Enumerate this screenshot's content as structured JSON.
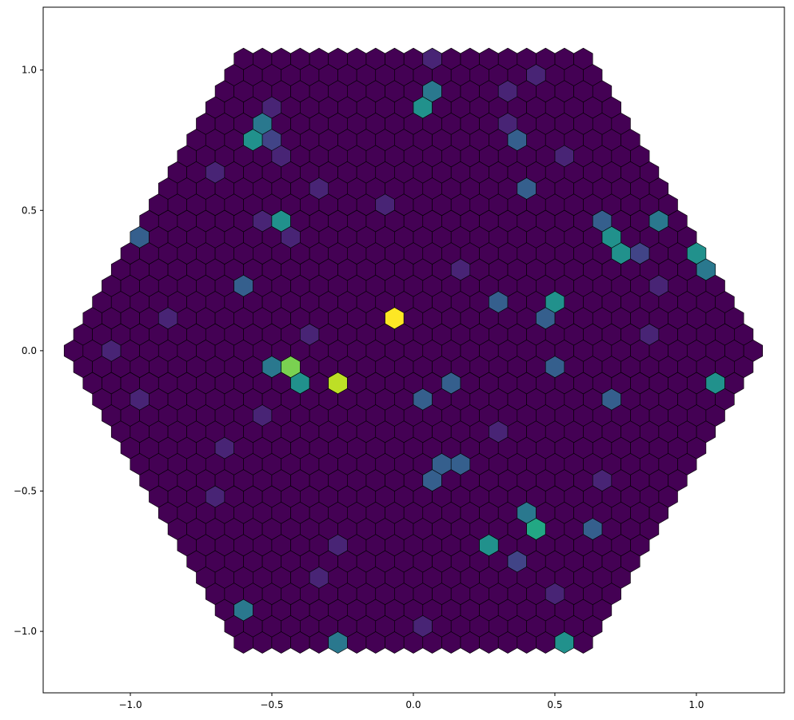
{
  "chart_data": {
    "type": "camera",
    "colormap": "viridis",
    "xlim": [
      -1.308,
      1.311
    ],
    "ylim": [
      -1.219,
      1.224
    ],
    "xticks": [
      {
        "value": -1.0,
        "label": "−1.0"
      },
      {
        "value": -0.5,
        "label": "−0.5"
      },
      {
        "value": 0.0,
        "label": "0.0"
      },
      {
        "value": 0.5,
        "label": "0.5"
      },
      {
        "value": 1.0,
        "label": "1.0"
      }
    ],
    "yticks": [
      {
        "value": -1.0,
        "label": "−1.0"
      },
      {
        "value": -0.5,
        "label": "−0.5"
      },
      {
        "value": 0.0,
        "label": "0.0"
      },
      {
        "value": 0.5,
        "label": "0.5"
      },
      {
        "value": 1.0,
        "label": "1.0"
      }
    ],
    "values": [
      [
        0,
        0,
        0,
        0,
        0,
        0,
        0,
        0,
        0,
        0,
        1,
        0,
        0,
        0,
        0,
        0,
        0,
        0,
        0
      ],
      [
        0,
        0,
        0,
        0,
        0,
        0,
        0,
        0,
        0,
        0,
        0,
        0,
        0,
        0,
        0,
        0,
        1,
        0,
        0,
        0
      ],
      [
        0,
        0,
        0,
        0,
        0,
        0,
        0,
        0,
        0,
        0,
        0,
        4,
        0,
        0,
        0,
        1,
        0,
        0,
        0,
        0,
        0
      ],
      [
        0,
        0,
        0,
        1,
        0,
        0,
        0,
        0,
        0,
        0,
        0,
        5,
        0,
        0,
        0,
        0,
        0,
        0,
        0,
        0,
        0,
        0
      ],
      [
        0,
        0,
        0,
        4,
        0,
        0,
        0,
        0,
        0,
        0,
        0,
        0,
        0,
        0,
        0,
        0,
        1,
        0,
        0,
        0,
        0,
        0,
        0
      ],
      [
        0,
        0,
        0,
        5,
        2,
        0,
        0,
        0,
        0,
        0,
        0,
        0,
        0,
        0,
        0,
        0,
        0,
        3,
        0,
        0,
        0,
        0,
        0,
        0
      ],
      [
        0,
        0,
        0,
        0,
        0,
        1,
        0,
        0,
        0,
        0,
        0,
        0,
        0,
        0,
        0,
        0,
        0,
        0,
        0,
        0,
        1,
        0,
        0,
        0,
        0
      ],
      [
        0,
        0,
        1,
        0,
        0,
        0,
        0,
        0,
        0,
        0,
        0,
        0,
        0,
        0,
        0,
        0,
        0,
        0,
        0,
        0,
        0,
        0,
        0,
        0,
        0,
        0
      ],
      [
        0,
        0,
        0,
        0,
        0,
        0,
        0,
        0,
        1,
        0,
        0,
        0,
        0,
        0,
        0,
        0,
        0,
        0,
        0,
        3,
        0,
        0,
        0,
        0,
        0,
        0,
        0
      ],
      [
        0,
        0,
        0,
        0,
        0,
        0,
        0,
        0,
        0,
        0,
        0,
        0,
        1,
        0,
        0,
        0,
        0,
        0,
        0,
        0,
        0,
        0,
        0,
        0,
        0,
        0,
        0,
        0
      ],
      [
        0,
        0,
        0,
        0,
        0,
        0,
        1,
        5,
        0,
        0,
        0,
        0,
        0,
        0,
        0,
        0,
        0,
        0,
        0,
        0,
        0,
        0,
        0,
        0,
        3,
        0,
        0,
        4,
        0
      ],
      [
        3,
        0,
        0,
        0,
        0,
        0,
        0,
        0,
        1,
        0,
        0,
        0,
        0,
        0,
        0,
        0,
        0,
        0,
        0,
        0,
        0,
        0,
        0,
        0,
        0,
        5,
        0,
        0,
        0,
        0
      ],
      [
        0,
        0,
        0,
        0,
        0,
        0,
        0,
        0,
        0,
        0,
        0,
        0,
        0,
        0,
        0,
        0,
        0,
        0,
        0,
        0,
        0,
        0,
        0,
        0,
        0,
        0,
        5,
        2,
        0,
        0,
        5
      ],
      [
        0,
        0,
        0,
        0,
        0,
        0,
        0,
        0,
        0,
        0,
        0,
        0,
        0,
        0,
        0,
        0,
        0,
        0,
        1,
        0,
        0,
        0,
        0,
        0,
        0,
        0,
        0,
        0,
        0,
        0,
        0,
        4
      ],
      [
        0,
        0,
        0,
        0,
        0,
        0,
        0,
        3,
        0,
        0,
        0,
        0,
        0,
        0,
        0,
        0,
        0,
        0,
        0,
        0,
        0,
        0,
        0,
        0,
        0,
        0,
        0,
        0,
        0,
        1,
        0,
        0,
        0
      ],
      [
        0,
        0,
        0,
        0,
        0,
        0,
        0,
        0,
        0,
        0,
        0,
        0,
        0,
        0,
        0,
        0,
        0,
        0,
        0,
        0,
        0,
        3,
        0,
        0,
        5,
        0,
        0,
        0,
        0,
        0,
        0,
        0,
        0,
        0
      ],
      [
        0,
        0,
        0,
        0,
        1,
        0,
        0,
        0,
        0,
        0,
        0,
        0,
        0,
        0,
        0,
        0,
        10,
        0,
        0,
        0,
        0,
        0,
        0,
        0,
        3,
        0,
        0,
        0,
        0,
        0,
        0,
        0,
        0,
        0,
        0
      ],
      [
        0,
        0,
        0,
        0,
        0,
        0,
        0,
        0,
        0,
        0,
        0,
        0,
        1,
        0,
        0,
        0,
        0,
        0,
        0,
        0,
        0,
        0,
        0,
        0,
        0,
        0,
        0,
        0,
        0,
        0,
        1,
        0,
        0,
        0,
        0,
        0
      ],
      [
        0,
        0,
        1,
        0,
        0,
        0,
        0,
        0,
        0,
        0,
        0,
        0,
        0,
        0,
        0,
        0,
        0,
        0,
        0,
        0,
        0,
        0,
        0,
        0,
        0,
        0,
        0,
        0,
        0,
        0,
        0,
        0,
        0,
        0,
        0,
        0,
        0
      ],
      [
        0,
        0,
        0,
        0,
        0,
        0,
        0,
        0,
        0,
        0,
        4,
        8,
        0,
        0,
        0,
        0,
        0,
        0,
        0,
        0,
        0,
        0,
        0,
        0,
        0,
        3,
        0,
        0,
        0,
        0,
        0,
        0,
        0,
        0,
        0,
        0
      ],
      [
        0,
        0,
        0,
        0,
        0,
        0,
        0,
        0,
        0,
        0,
        0,
        5,
        0,
        9,
        0,
        0,
        0,
        0,
        0,
        3,
        0,
        0,
        0,
        0,
        0,
        0,
        0,
        0,
        0,
        0,
        0,
        0,
        0,
        5,
        0
      ],
      [
        0,
        0,
        1,
        0,
        0,
        0,
        0,
        0,
        0,
        0,
        0,
        0,
        0,
        0,
        0,
        0,
        0,
        3,
        0,
        0,
        0,
        0,
        0,
        0,
        0,
        0,
        0,
        3,
        0,
        0,
        0,
        0,
        0,
        0
      ],
      [
        0,
        0,
        0,
        0,
        0,
        0,
        0,
        0,
        1,
        0,
        0,
        0,
        0,
        0,
        0,
        0,
        0,
        0,
        0,
        0,
        0,
        0,
        0,
        0,
        0,
        0,
        0,
        0,
        0,
        0,
        0,
        0,
        0
      ],
      [
        0,
        0,
        0,
        0,
        0,
        0,
        0,
        0,
        0,
        0,
        0,
        0,
        0,
        0,
        0,
        0,
        0,
        0,
        0,
        0,
        1,
        0,
        0,
        0,
        0,
        0,
        0,
        0,
        0,
        0,
        0,
        0
      ],
      [
        0,
        0,
        0,
        0,
        0,
        1,
        0,
        0,
        0,
        0,
        0,
        0,
        0,
        0,
        0,
        0,
        0,
        0,
        0,
        0,
        0,
        0,
        0,
        0,
        0,
        0,
        0,
        0,
        0,
        0,
        0
      ],
      [
        0,
        0,
        0,
        0,
        0,
        0,
        0,
        0,
        0,
        0,
        0,
        0,
        0,
        0,
        0,
        0,
        3,
        3,
        0,
        0,
        0,
        0,
        0,
        0,
        0,
        0,
        0,
        0,
        0,
        0
      ],
      [
        0,
        0,
        0,
        0,
        0,
        0,
        0,
        0,
        0,
        0,
        0,
        0,
        0,
        0,
        0,
        3,
        0,
        0,
        0,
        0,
        0,
        0,
        0,
        0,
        1,
        0,
        0,
        0,
        0
      ],
      [
        0,
        0,
        0,
        1,
        0,
        0,
        0,
        0,
        0,
        0,
        0,
        0,
        0,
        0,
        0,
        0,
        0,
        0,
        0,
        0,
        0,
        0,
        0,
        0,
        0,
        0,
        0,
        0
      ],
      [
        0,
        0,
        0,
        0,
        0,
        0,
        0,
        0,
        0,
        0,
        0,
        0,
        0,
        0,
        0,
        0,
        0,
        0,
        0,
        4,
        0,
        0,
        0,
        0,
        0,
        0,
        0
      ],
      [
        0,
        0,
        0,
        0,
        0,
        0,
        0,
        0,
        0,
        0,
        0,
        0,
        0,
        0,
        0,
        0,
        0,
        0,
        0,
        6,
        0,
        0,
        3,
        0,
        0,
        0
      ],
      [
        0,
        0,
        0,
        0,
        0,
        0,
        0,
        0,
        1,
        0,
        0,
        0,
        0,
        0,
        0,
        0,
        5,
        0,
        0,
        0,
        0,
        0,
        0,
        0,
        0
      ],
      [
        0,
        0,
        0,
        0,
        0,
        0,
        0,
        0,
        0,
        0,
        0,
        0,
        0,
        0,
        0,
        0,
        0,
        2,
        0,
        0,
        0,
        0,
        0,
        0
      ],
      [
        0,
        0,
        0,
        0,
        0,
        0,
        1,
        0,
        0,
        0,
        0,
        0,
        0,
        0,
        0,
        0,
        0,
        0,
        0,
        0,
        0,
        0,
        0
      ],
      [
        0,
        0,
        0,
        0,
        0,
        0,
        0,
        0,
        0,
        0,
        0,
        0,
        0,
        0,
        0,
        0,
        0,
        0,
        1,
        0,
        0,
        0
      ],
      [
        0,
        4,
        0,
        0,
        0,
        0,
        0,
        0,
        0,
        0,
        0,
        0,
        0,
        0,
        0,
        0,
        0,
        0,
        0,
        0,
        0
      ],
      [
        0,
        0,
        0,
        0,
        0,
        0,
        0,
        0,
        0,
        0,
        1,
        0,
        0,
        0,
        0,
        0,
        0,
        0,
        0,
        0
      ],
      [
        0,
        0,
        0,
        0,
        0,
        4,
        0,
        0,
        0,
        0,
        0,
        0,
        0,
        0,
        0,
        0,
        0,
        5,
        0
      ]
    ]
  }
}
